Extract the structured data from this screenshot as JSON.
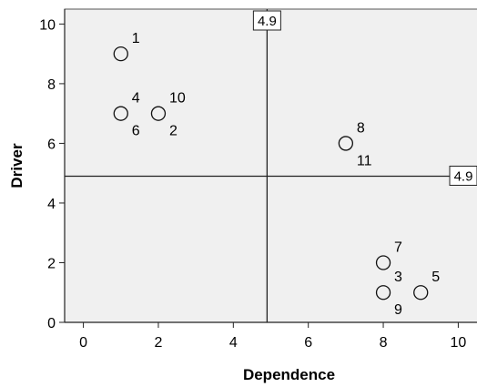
{
  "chart_data": {
    "type": "scatter",
    "xlabel": "Dependence",
    "ylabel": "Driver",
    "xlim": [
      -0.5,
      10.5
    ],
    "ylim": [
      0,
      10.5
    ],
    "x_ticks": [
      "0",
      "2",
      "4",
      "6",
      "8",
      "10"
    ],
    "y_ticks": [
      "0",
      "2",
      "4",
      "6",
      "8",
      "10"
    ],
    "grid": false,
    "reference_lines": [
      {
        "axis": "x",
        "value": 4.9,
        "label": "4.9"
      },
      {
        "axis": "y",
        "value": 4.9,
        "label": "4.9"
      }
    ],
    "points": [
      {
        "x": 1,
        "y": 9,
        "labels": [
          "1"
        ]
      },
      {
        "x": 1,
        "y": 7,
        "labels": [
          "4",
          "6"
        ]
      },
      {
        "x": 2,
        "y": 7,
        "labels": [
          "10",
          "2"
        ]
      },
      {
        "x": 7,
        "y": 6,
        "labels": [
          "8",
          "11"
        ]
      },
      {
        "x": 8,
        "y": 2,
        "labels": [
          "7"
        ]
      },
      {
        "x": 8,
        "y": 1,
        "labels": [
          "3",
          "9"
        ]
      },
      {
        "x": 9,
        "y": 1,
        "labels": [
          "5"
        ]
      }
    ],
    "colors": {
      "plot_background": "#f0f0f0",
      "marker_stroke": "#111111",
      "reference_line": "#222222"
    }
  }
}
